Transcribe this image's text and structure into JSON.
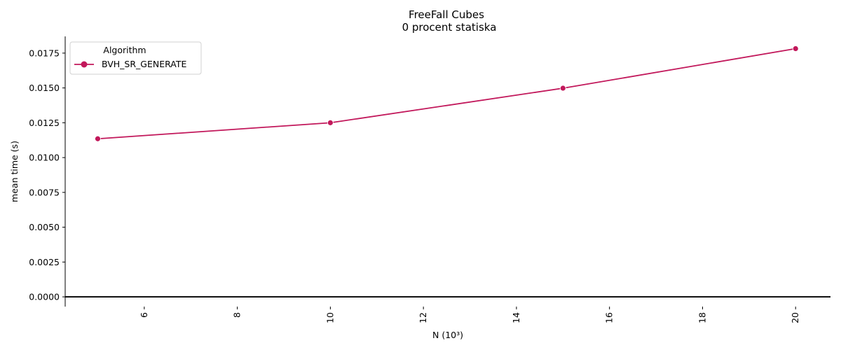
{
  "chart_data": {
    "type": "line",
    "title": "FreeFall Cubes",
    "subtitle": "0 procent statiska",
    "xlabel": "N (10³)",
    "ylabel": "mean time (s)",
    "xlim": [
      4.3,
      20.75
    ],
    "ylim": [
      -0.0007,
      0.0187
    ],
    "x_ticks": [
      6,
      8,
      10,
      12,
      14,
      16,
      18,
      20
    ],
    "y_ticks": [
      0.0,
      0.0025,
      0.005,
      0.0075,
      0.01,
      0.0125,
      0.015,
      0.0175
    ],
    "y_tick_labels": [
      "0.0000",
      "0.0025",
      "0.0050",
      "0.0075",
      "0.0100",
      "0.0125",
      "0.0150",
      "0.0175"
    ],
    "x_tick_rotation": "vertical",
    "grid": false,
    "legend": {
      "title": "Algorithm",
      "position": "top-left"
    },
    "series": [
      {
        "name": "BVH_SR_GENERATE",
        "color": "#c2185b",
        "marker": "circle",
        "x": [
          5,
          10,
          15,
          20
        ],
        "y": [
          0.01135,
          0.0125,
          0.01498,
          0.01782
        ]
      }
    ]
  }
}
